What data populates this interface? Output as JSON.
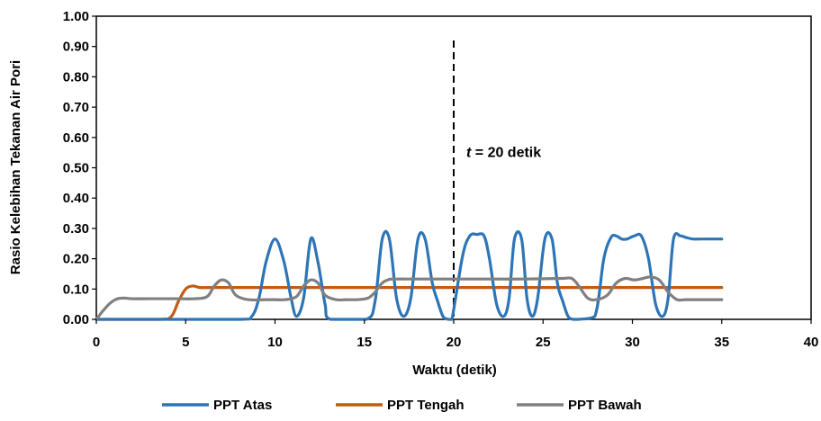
{
  "chart_data": {
    "type": "line",
    "xlabel": "Waktu (detik)",
    "ylabel": "Rasio Kelebihan Tekanan Air Pori",
    "xlim": [
      0,
      40
    ],
    "ylim": [
      0,
      1.0
    ],
    "xticks": [
      "0",
      "5",
      "10",
      "15",
      "20",
      "25",
      "30",
      "35",
      "40"
    ],
    "yticks": [
      "0.00",
      "0.10",
      "0.20",
      "0.30",
      "0.40",
      "0.50",
      "0.60",
      "0.70",
      "0.80",
      "0.90",
      "1.00"
    ],
    "grid": false,
    "legend_position": "bottom",
    "annotation": {
      "italic": "t",
      "text": " = 20 detik",
      "x": 20
    },
    "series": [
      {
        "name": "PPT Atas",
        "color": "#2E75B6",
        "x": [
          0,
          3,
          8,
          8.7,
          9.1,
          9.5,
          10,
          10.5,
          10.9,
          11.2,
          11.6,
          12,
          12.4,
          12.8,
          13.1,
          15.1,
          15.6,
          16,
          16.4,
          16.8,
          17.2,
          17.6,
          18,
          18.4,
          18.8,
          19.1,
          19.4,
          19.7,
          19.9,
          20.5,
          20.9,
          21.3,
          21.7,
          22.0,
          22.4,
          22.8,
          23.1,
          23.4,
          23.8,
          24.1,
          24.4,
          24.7,
          25.1,
          25.5,
          25.8,
          26.1,
          26.4,
          26.7,
          27.0,
          27.9,
          28.4,
          28.8,
          29.1,
          29.4,
          29.7,
          30.1,
          30.5,
          30.9,
          31.3,
          31.7,
          32.0,
          32.3,
          32.7,
          33.0,
          33.4,
          33.8,
          34.2,
          35
        ],
        "y": [
          0,
          0,
          0,
          0.01,
          0.07,
          0.19,
          0.265,
          0.19,
          0.07,
          0.01,
          0.07,
          0.265,
          0.19,
          0.05,
          0,
          0,
          0.06,
          0.265,
          0.265,
          0.07,
          0.01,
          0.07,
          0.265,
          0.265,
          0.12,
          0.06,
          0.01,
          0.0,
          0.0,
          0.21,
          0.275,
          0.28,
          0.275,
          0.2,
          0.05,
          0.01,
          0.07,
          0.265,
          0.265,
          0.07,
          0.01,
          0.07,
          0.265,
          0.265,
          0.12,
          0.06,
          0.01,
          0.0,
          0.0,
          0.01,
          0.2,
          0.27,
          0.275,
          0.265,
          0.265,
          0.275,
          0.275,
          0.2,
          0.05,
          0.01,
          0.07,
          0.265,
          0.275,
          0.27,
          0.265,
          0.265,
          0.265,
          0.265
        ]
      },
      {
        "name": "PPT Tengah",
        "color": "#C55A11",
        "x": [
          0,
          3.5,
          4.2,
          4.6,
          5.0,
          5.4,
          5.8,
          6.5,
          10,
          15,
          20,
          25,
          30,
          35
        ],
        "y": [
          0,
          0,
          0.01,
          0.06,
          0.1,
          0.11,
          0.105,
          0.105,
          0.105,
          0.105,
          0.105,
          0.105,
          0.105,
          0.105
        ]
      },
      {
        "name": "PPT Bawah",
        "color": "#808080",
        "x": [
          0,
          0.4,
          0.8,
          1.2,
          1.6,
          2.0,
          3.0,
          4.5,
          5.5,
          6.2,
          6.6,
          7.0,
          7.4,
          7.8,
          8.5,
          9.5,
          10.0,
          10.6,
          11.2,
          11.6,
          12.0,
          12.4,
          12.8,
          13.4,
          14.0,
          14.6,
          15.2,
          15.6,
          16.0,
          16.4,
          16.8,
          17.5,
          18.5,
          20,
          22,
          24,
          26,
          26.6,
          27.0,
          27.5,
          28.0,
          28.6,
          29.1,
          29.6,
          30.1,
          30.6,
          31.0,
          31.5,
          32.0,
          32.5,
          33.0,
          34.0,
          35
        ],
        "y": [
          0,
          0.03,
          0.055,
          0.068,
          0.07,
          0.068,
          0.068,
          0.068,
          0.068,
          0.075,
          0.11,
          0.13,
          0.12,
          0.08,
          0.065,
          0.065,
          0.065,
          0.065,
          0.075,
          0.11,
          0.13,
          0.12,
          0.08,
          0.065,
          0.065,
          0.065,
          0.07,
          0.09,
          0.12,
          0.132,
          0.133,
          0.133,
          0.133,
          0.133,
          0.133,
          0.133,
          0.135,
          0.135,
          0.11,
          0.07,
          0.065,
          0.08,
          0.12,
          0.135,
          0.13,
          0.135,
          0.14,
          0.13,
          0.09,
          0.065,
          0.065,
          0.065,
          0.065
        ]
      }
    ]
  }
}
